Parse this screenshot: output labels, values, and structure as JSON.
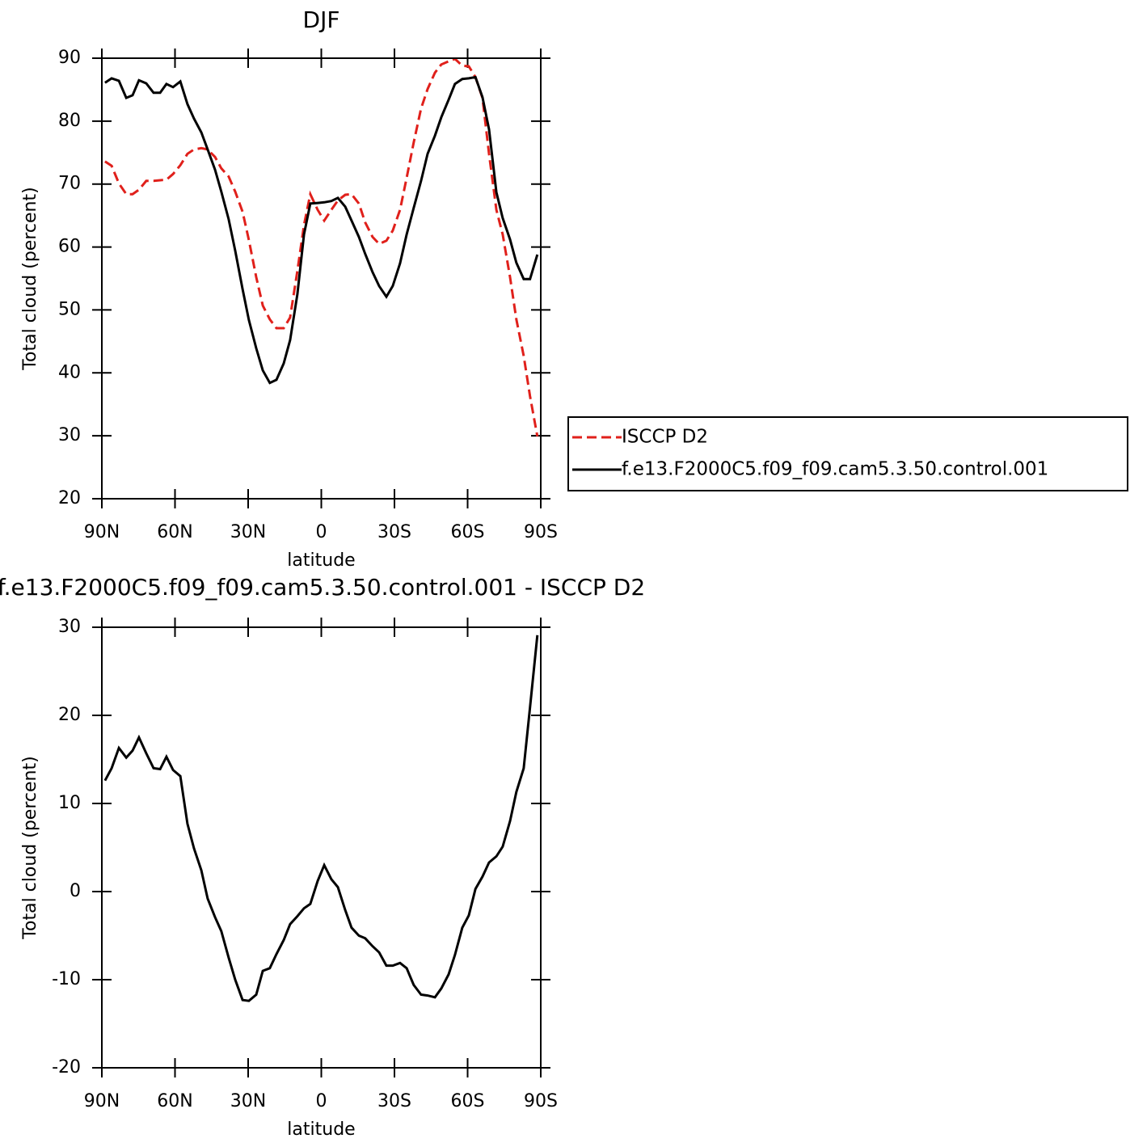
{
  "chart_data": [
    {
      "type": "line",
      "title": "DJF",
      "xlabel": "latitude",
      "ylabel": "Total cloud (percent)",
      "x": [
        88.7,
        86,
        83,
        80,
        77.4,
        74.8,
        71.8,
        68.8,
        66.1,
        63.5,
        60.8,
        57.8,
        54.9,
        52.2,
        49.2,
        46.6,
        43.6,
        41,
        38,
        35.3,
        32.3,
        29.7,
        26.7,
        24,
        21.1,
        18.4,
        15.4,
        12.8,
        9.8,
        7.1,
        4.5,
        1.5,
        -1.2,
        -4.1,
        -6.8,
        -9.8,
        -12.4,
        -15.4,
        -18,
        -21,
        -23.7,
        -26.7,
        -29.3,
        -32.3,
        -35,
        -37.9,
        -40.9,
        -43.6,
        -46.6,
        -49.2,
        -52.2,
        -54.8,
        -57.8,
        -60.5,
        -63.2,
        -66.1,
        -68.8,
        -71.8,
        -74.4,
        -77.4,
        -80,
        -83,
        -85.6,
        -88.6
      ],
      "series": [
        {
          "name": "ISCCP D2",
          "color": "#e0201b",
          "style": "dashed",
          "values": [
            73.6,
            72.9,
            70.1,
            68.4,
            68.4,
            69.1,
            70.5,
            70.5,
            70.6,
            70.7,
            71.6,
            73.0,
            74.8,
            75.5,
            75.7,
            75.5,
            74.3,
            72.5,
            71.2,
            68.8,
            65.6,
            61.1,
            55.2,
            50.7,
            48.5,
            47.1,
            47.1,
            48.8,
            56.2,
            63.5,
            68.4,
            65.9,
            64.2,
            65.9,
            67.4,
            68.3,
            68.4,
            66.9,
            63.9,
            61.6,
            60.5,
            61.0,
            62.6,
            65.9,
            71.0,
            76.6,
            82.0,
            85.1,
            87.7,
            89.0,
            89.5,
            89.9,
            88.8,
            88.7,
            87.0,
            83.7,
            74.8,
            65.9,
            62.0,
            55.2,
            48.5,
            42.7,
            36.3,
            29.9
          ]
        },
        {
          "name": "f.e13.F2000C5.f09_f09.cam5.3.50.control.001",
          "color": "#000000",
          "style": "solid",
          "values": [
            86.1,
            86.8,
            86.4,
            83.7,
            84.1,
            86.5,
            86.0,
            84.5,
            84.5,
            85.9,
            85.4,
            86.3,
            82.7,
            80.4,
            78.2,
            75.5,
            72.3,
            68.8,
            64.4,
            59.4,
            53.3,
            48.4,
            43.9,
            40.4,
            38.4,
            38.9,
            41.5,
            45.2,
            52.5,
            62.0,
            66.9,
            67.0,
            67.1,
            67.3,
            67.8,
            66.4,
            64.2,
            61.6,
            58.9,
            56.0,
            53.8,
            52.1,
            53.8,
            57.4,
            62.0,
            66.2,
            70.5,
            74.8,
            77.7,
            80.6,
            83.4,
            85.9,
            86.7,
            86.8,
            87.0,
            83.8,
            78.7,
            68.7,
            64.6,
            61.2,
            57.5,
            54.9,
            54.9,
            58.8
          ]
        }
      ],
      "xlim": [
        90,
        -90
      ],
      "xticks": [
        {
          "value": 90,
          "label": "90N"
        },
        {
          "value": 60,
          "label": "60N"
        },
        {
          "value": 30,
          "label": "30N"
        },
        0,
        {
          "value": -30,
          "label": "30S"
        },
        {
          "value": -60,
          "label": "60S"
        },
        {
          "value": -90,
          "label": "90S"
        }
      ],
      "ylim": [
        20,
        90
      ],
      "yticks": [
        20,
        30,
        40,
        50,
        60,
        70,
        80,
        90
      ],
      "legend": "outside right"
    },
    {
      "type": "line",
      "title": "f.e13.F2000C5.f09_f09.cam5.3.50.control.001 - ISCCP D2",
      "xlabel": "latitude",
      "ylabel": "Total cloud (percent)",
      "x": [
        88.7,
        86,
        83,
        80,
        77.4,
        74.8,
        71.8,
        68.8,
        66.1,
        63.5,
        60.8,
        57.8,
        54.9,
        52.2,
        49.2,
        46.6,
        43.6,
        41,
        38,
        35.3,
        32.3,
        29.7,
        26.7,
        24,
        21.1,
        18.4,
        15.4,
        12.8,
        9.8,
        7.1,
        4.5,
        1.5,
        -1.2,
        -4.1,
        -6.8,
        -9.8,
        -12.4,
        -15.4,
        -18,
        -21,
        -23.7,
        -26.7,
        -29.3,
        -32.3,
        -35,
        -37.9,
        -40.9,
        -43.6,
        -46.6,
        -49.2,
        -52.2,
        -54.8,
        -57.8,
        -60.5,
        -63.2,
        -66.1,
        -68.8,
        -71.8,
        -74.4,
        -77.4,
        -80,
        -83,
        -85.6,
        -88.6
      ],
      "values": [
        12.6,
        14.0,
        16.3,
        15.2,
        16.0,
        17.5,
        15.7,
        14.0,
        13.9,
        15.3,
        13.8,
        13.1,
        7.7,
        4.9,
        2.4,
        -0.8,
        -2.9,
        -4.5,
        -7.5,
        -10.0,
        -12.3,
        -12.4,
        -11.7,
        -9.0,
        -8.7,
        -7.1,
        -5.5,
        -3.7,
        -2.8,
        -1.9,
        -1.4,
        1.2,
        3.0,
        1.4,
        0.5,
        -2.1,
        -4.1,
        -5.0,
        -5.3,
        -6.2,
        -6.9,
        -8.4,
        -8.4,
        -8.1,
        -8.7,
        -10.6,
        -11.7,
        -11.8,
        -12.0,
        -11.0,
        -9.4,
        -7.2,
        -4.1,
        -2.7,
        0.3,
        1.7,
        3.3,
        4.0,
        5.1,
        8.0,
        11.3,
        14.0,
        20.9,
        29.1
      ],
      "color": "#000000",
      "xlim": [
        90,
        -90
      ],
      "xticks": [
        {
          "value": 90,
          "label": "90N"
        },
        {
          "value": 60,
          "label": "60N"
        },
        {
          "value": 30,
          "label": "30N"
        },
        0,
        {
          "value": -30,
          "label": "30S"
        },
        {
          "value": -60,
          "label": "60S"
        },
        {
          "value": -90,
          "label": "90S"
        }
      ],
      "ylim": [
        -20,
        30
      ],
      "yticks": [
        -20,
        -10,
        0,
        10,
        20,
        30
      ]
    }
  ]
}
